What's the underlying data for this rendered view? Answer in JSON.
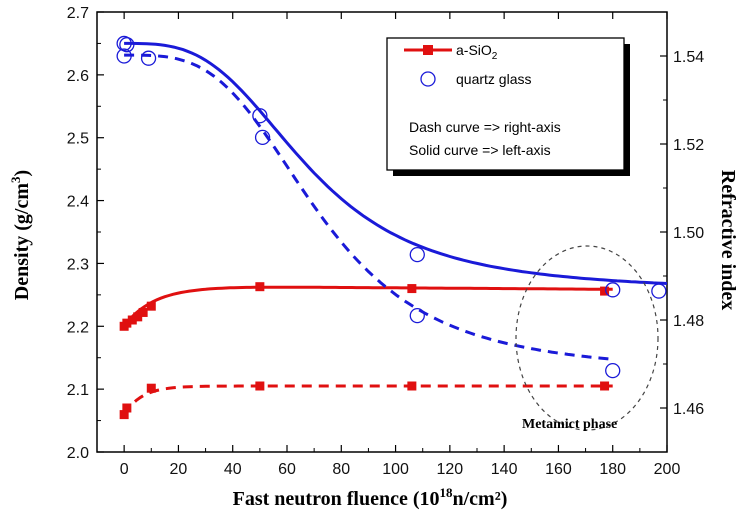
{
  "chart_data": {
    "type": "line",
    "xlabel": "Fast neutron fluence (10",
    "xlabel_sup": "18",
    "xlabel_tail": "n/cm²)",
    "ylabel_left": "Density (g/cm",
    "ylabel_left_sup": "3",
    "ylabel_left_tail": ")",
    "ylabel_right": "Refractive index",
    "xlim": [
      -10,
      200
    ],
    "ylim_left": [
      2.0,
      2.7
    ],
    "ylim_right": [
      1.45,
      1.55
    ],
    "x_ticks": [
      0,
      20,
      40,
      60,
      80,
      100,
      120,
      140,
      160,
      180,
      200
    ],
    "y_left_ticks": [
      "2.0",
      "2.1",
      "2.2",
      "2.3",
      "2.4",
      "2.5",
      "2.6",
      "2.7"
    ],
    "y_right_ticks": [
      "1.46",
      "1.48",
      "1.50",
      "1.52",
      "1.54"
    ],
    "legend": {
      "position": "top-right",
      "entry1": "a-SiO",
      "entry1_sub": "2",
      "entry2": "quartz glass",
      "note1": "Dash curve  => right-axis",
      "note2": "Solid curve => left-axis"
    },
    "annotation": "Metamict phase",
    "colors": {
      "asio2": "#e01010",
      "quartz": "#1a1ad8"
    },
    "series": [
      {
        "name": "a-SiO2",
        "axis": "left",
        "marker": "square",
        "x": [
          0,
          1,
          3,
          5,
          7,
          10,
          50,
          106,
          177
        ],
        "y": [
          2.2,
          2.205,
          2.21,
          2.215,
          2.222,
          2.232,
          2.263,
          2.26,
          2.256
        ]
      },
      {
        "name": "a-SiO2",
        "axis": "right",
        "marker": "square",
        "x": [
          0,
          1,
          10,
          50,
          106,
          177
        ],
        "y": [
          1.4585,
          1.46,
          1.4645,
          1.465,
          1.465,
          1.465
        ]
      },
      {
        "name": "quartz glass",
        "axis": "left",
        "marker": "circle",
        "x": [
          0,
          1,
          50,
          108,
          180,
          197
        ],
        "y": [
          2.65,
          2.648,
          2.535,
          2.314,
          2.258,
          2.256
        ]
      },
      {
        "name": "quartz glass",
        "axis": "right",
        "marker": "circle",
        "x": [
          0,
          9,
          51,
          108,
          180
        ],
        "y": [
          1.54,
          1.5395,
          1.5215,
          1.481,
          1.4685
        ]
      }
    ]
  }
}
